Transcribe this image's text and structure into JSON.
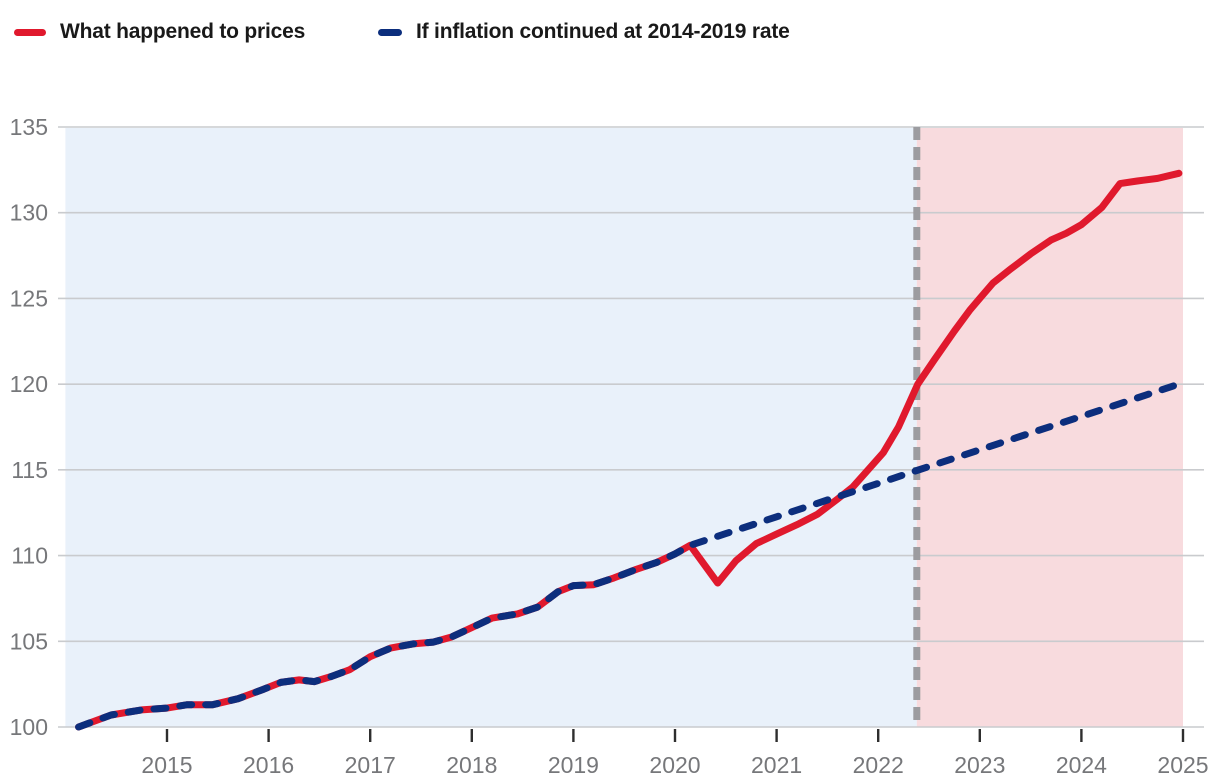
{
  "legend": {
    "items": [
      {
        "label": "What happened to prices",
        "series": "actual",
        "marker": "solid-line-swatch"
      },
      {
        "label": "If inflation continued at 2014-2019 rate",
        "series": "counterfactual",
        "marker": "dashed-line-swatch"
      }
    ]
  },
  "colors": {
    "actual": "#e0192d",
    "counterfactual": "#0c2e7d",
    "pre_divider_bg": "#e9f1fa",
    "post_divider_bg": "#f8dbde",
    "divider": "#9c9ca0",
    "gridline": "#c9cbce",
    "tick_label": "#76777a",
    "tick_mark": "#2e2e2e",
    "legend_text": "#191919"
  },
  "chart_data": {
    "type": "line",
    "title": "",
    "xlabel": "",
    "ylabel": "",
    "grid": true,
    "x_range": [
      2014.0,
      2025.0
    ],
    "y_range": [
      100,
      135
    ],
    "x_ticks": [
      {
        "t": 2015,
        "label": "2015"
      },
      {
        "t": 2016,
        "label": "2016"
      },
      {
        "t": 2017,
        "label": "2017"
      },
      {
        "t": 2018,
        "label": "2018"
      },
      {
        "t": 2019,
        "label": "2019"
      },
      {
        "t": 2020,
        "label": "2020"
      },
      {
        "t": 2021,
        "label": "2021"
      },
      {
        "t": 2022,
        "label": "2022"
      },
      {
        "t": 2023,
        "label": "2023"
      },
      {
        "t": 2024,
        "label": "2024"
      },
      {
        "t": 2025,
        "label": "2025"
      }
    ],
    "y_ticks": [
      {
        "v": 100,
        "label": "100"
      },
      {
        "v": 105,
        "label": "105"
      },
      {
        "v": 110,
        "label": "110"
      },
      {
        "v": 115,
        "label": "115"
      },
      {
        "v": 120,
        "label": "120"
      },
      {
        "v": 125,
        "label": "125"
      },
      {
        "v": 130,
        "label": "130"
      },
      {
        "v": 135,
        "label": "135"
      }
    ],
    "divider_x": 2022.38,
    "series": [
      {
        "name": "What happened to prices",
        "style": "solid",
        "color_key": "actual",
        "x": [
          2014.13,
          2014.45,
          2014.75,
          2015.0,
          2015.2,
          2015.45,
          2015.7,
          2015.95,
          2016.12,
          2016.3,
          2016.45,
          2016.62,
          2016.8,
          2017.0,
          2017.2,
          2017.42,
          2017.62,
          2017.8,
          2018.0,
          2018.2,
          2018.45,
          2018.65,
          2018.85,
          2019.0,
          2019.2,
          2019.4,
          2019.62,
          2019.82,
          2020.0,
          2020.15,
          2020.42,
          2020.6,
          2020.8,
          2021.0,
          2021.2,
          2021.4,
          2021.6,
          2021.75,
          2021.9,
          2022.05,
          2022.2,
          2022.39,
          2022.55,
          2022.75,
          2022.9,
          2023.0,
          2023.13,
          2023.3,
          2023.5,
          2023.7,
          2023.85,
          2024.0,
          2024.2,
          2024.38,
          2024.55,
          2024.75,
          2024.96
        ],
        "y": [
          100.0,
          100.7,
          101.0,
          101.1,
          101.3,
          101.3,
          101.65,
          102.2,
          102.6,
          102.75,
          102.65,
          102.95,
          103.35,
          104.1,
          104.6,
          104.85,
          104.95,
          105.25,
          105.8,
          106.35,
          106.6,
          107.0,
          107.9,
          108.25,
          108.3,
          108.7,
          109.2,
          109.6,
          110.1,
          110.6,
          108.4,
          109.7,
          110.7,
          111.25,
          111.8,
          112.4,
          113.3,
          114.0,
          115.0,
          116.0,
          117.5,
          120.0,
          121.4,
          123.1,
          124.3,
          125.0,
          125.9,
          126.7,
          127.6,
          128.4,
          128.8,
          129.3,
          130.3,
          131.7,
          131.85,
          132.0,
          132.3
        ]
      },
      {
        "name": "If inflation continued at 2014-2019 rate",
        "style": "dashed",
        "color_key": "counterfactual",
        "x": [
          2014.13,
          2014.45,
          2014.75,
          2015.0,
          2015.2,
          2015.45,
          2015.7,
          2015.95,
          2016.12,
          2016.3,
          2016.45,
          2016.62,
          2016.8,
          2017.0,
          2017.2,
          2017.42,
          2017.62,
          2017.8,
          2018.0,
          2018.2,
          2018.45,
          2018.65,
          2018.85,
          2019.0,
          2019.2,
          2019.4,
          2019.62,
          2019.82,
          2020.0,
          2020.15,
          2020.5,
          2021.0,
          2021.5,
          2022.0,
          2022.38,
          2023.0,
          2023.5,
          2024.0,
          2024.5,
          2024.96
        ],
        "y": [
          100.0,
          100.7,
          101.0,
          101.1,
          101.3,
          101.3,
          101.65,
          102.2,
          102.6,
          102.75,
          102.65,
          102.95,
          103.35,
          104.1,
          104.6,
          104.85,
          104.95,
          105.25,
          105.8,
          106.35,
          106.6,
          107.0,
          107.9,
          108.25,
          108.3,
          108.7,
          109.2,
          109.6,
          110.1,
          110.6,
          111.28,
          112.26,
          113.24,
          114.21,
          114.96,
          116.17,
          117.15,
          118.12,
          119.1,
          120.0
        ]
      }
    ]
  }
}
